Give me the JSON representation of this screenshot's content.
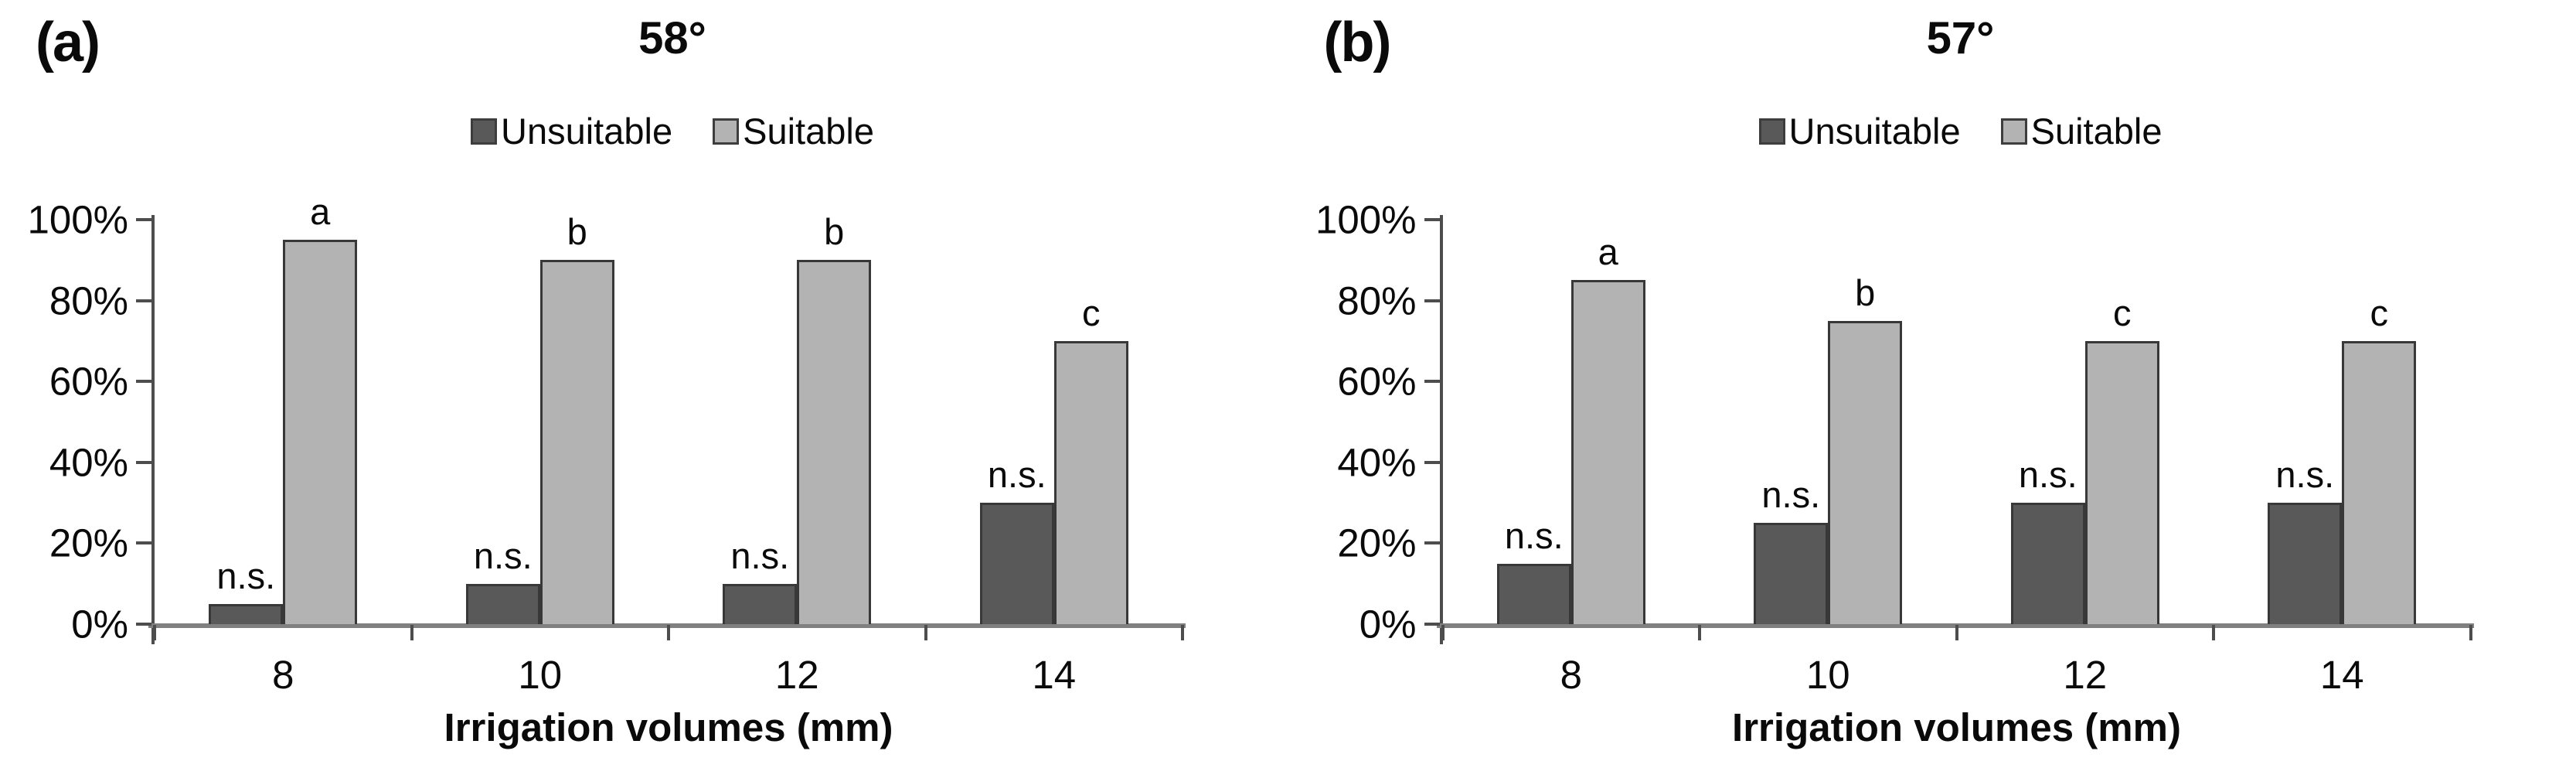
{
  "figure": {
    "background": "#ffffff",
    "text_color": "#0a0a0a",
    "axis_line_color": "#808080",
    "tick_color": "#4d4d4d",
    "bar_border_color": "#383838"
  },
  "chart_data": [
    {
      "type": "bar",
      "panel_label": "(a)",
      "title": "58°",
      "legend_position": "top",
      "grid": false,
      "xlabel": "Irrigation volumes (mm)",
      "ylabel": "",
      "ylim": [
        0,
        100
      ],
      "ytick_values": [
        100,
        80,
        60,
        40,
        20,
        0
      ],
      "ytick_labels": [
        "100%",
        "80%",
        "60%",
        "40%",
        "20%",
        "0%"
      ],
      "categories": [
        "8",
        "10",
        "12",
        "14"
      ],
      "series": [
        {
          "name": "Unsuitable",
          "color": "#595959",
          "values": [
            5,
            10,
            10,
            30
          ],
          "labels": [
            "n.s.",
            "n.s.",
            "n.s.",
            "n.s."
          ]
        },
        {
          "name": "Suitable",
          "color": "#b3b3b3",
          "values": [
            95,
            90,
            90,
            70
          ],
          "labels": [
            "a",
            "b",
            "b",
            "c"
          ]
        }
      ]
    },
    {
      "type": "bar",
      "panel_label": "(b)",
      "title": "57°",
      "legend_position": "top",
      "grid": false,
      "xlabel": "Irrigation volumes (mm)",
      "ylabel": "",
      "ylim": [
        0,
        100
      ],
      "ytick_values": [
        100,
        80,
        60,
        40,
        20,
        0
      ],
      "ytick_labels": [
        "100%",
        "80%",
        "60%",
        "40%",
        "20%",
        "0%"
      ],
      "categories": [
        "8",
        "10",
        "12",
        "14"
      ],
      "series": [
        {
          "name": "Unsuitable",
          "color": "#595959",
          "values": [
            15,
            25,
            30,
            30
          ],
          "labels": [
            "n.s.",
            "n.s.",
            "n.s.",
            "n.s."
          ]
        },
        {
          "name": "Suitable",
          "color": "#b3b3b3",
          "values": [
            85,
            75,
            70,
            70
          ],
          "labels": [
            "a",
            "b",
            "c",
            "c"
          ]
        }
      ]
    }
  ]
}
